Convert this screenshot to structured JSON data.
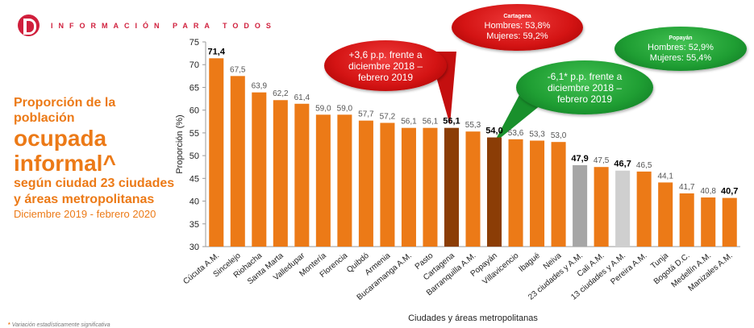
{
  "header": {
    "tagline": "INFORMACIÓN PARA TODOS"
  },
  "side_title": {
    "line1": "Proporción de la población",
    "line2": "ocupada informal^",
    "line3": "según ciudad 23 ciudades y áreas metropolitanas",
    "line4": "Diciembre 2019 - febrero 2020"
  },
  "footnote": {
    "mark": "*",
    "text": "Variación estadísticamente significativa"
  },
  "colors": {
    "orange": "#ec7a17",
    "brown": "#8b3d06",
    "gray_dark": "#a6a6a6",
    "gray_light": "#cfcfcf",
    "red": "#d41414",
    "green": "#1f9e33"
  },
  "bubbles": {
    "red_big": "+3,6 p.p. frente a diciembre 2018 – febrero 2019",
    "green_big": "-6,1* p.p. frente a diciembre 2018 – febrero 2019",
    "red_small": {
      "title": "Cartagena",
      "men": "Hombres: 53,8%",
      "women": "Mujeres: 59,2%"
    },
    "green_small": {
      "title": "Popayán",
      "men": "Hombres: 52,9%",
      "women": "Mujeres: 55,4%"
    }
  },
  "chart_data": {
    "type": "bar",
    "title": "",
    "xlabel": "Ciudades y áreas metropolitanas",
    "ylabel": "Proporción (%)",
    "ylim": [
      30,
      75
    ],
    "yticks": [
      30,
      35,
      40,
      45,
      50,
      55,
      60,
      65,
      70,
      75
    ],
    "categories": [
      "Cúcuta A.M.",
      "Sincelejo",
      "Riohacha",
      "Santa Marta",
      "Valledupar",
      "Montería",
      "Florencia",
      "Quibdó",
      "Armenia",
      "Bucaramanga A.M.",
      "Pasto",
      "Cartagena",
      "Barranquilla A.M.",
      "Popayán",
      "Villavicencio",
      "Ibagué",
      "Neiva",
      "23 ciudades y A.M.",
      "Cali A.M.",
      "13 ciudades y A.M.",
      "Pereira A.M.",
      "Tunja",
      "Bogotá D.C.",
      "Medellín A.M.",
      "Manizales A.M."
    ],
    "values": [
      71.4,
      67.5,
      63.9,
      62.2,
      61.4,
      59.0,
      59.0,
      57.7,
      57.2,
      56.1,
      56.1,
      56.1,
      55.3,
      54.0,
      53.6,
      53.3,
      53.0,
      47.9,
      47.5,
      46.7,
      46.5,
      44.1,
      41.7,
      40.8,
      40.7
    ],
    "value_labels": [
      "71,4",
      "67,5",
      "63,9",
      "62,2",
      "61,4",
      "59,0",
      "59,0",
      "57,7",
      "57,2",
      "56,1",
      "56,1",
      "56,1",
      "55,3",
      "54,0",
      "53,6",
      "53,3",
      "53,0",
      "47,9",
      "47,5",
      "46,7",
      "46,5",
      "44,1",
      "41,7",
      "40,8",
      "40,7"
    ],
    "bar_colors": [
      "orange",
      "orange",
      "orange",
      "orange",
      "orange",
      "orange",
      "orange",
      "orange",
      "orange",
      "orange",
      "orange",
      "brown",
      "orange",
      "brown",
      "orange",
      "orange",
      "orange",
      "gray_dark",
      "orange",
      "gray_light",
      "orange",
      "orange",
      "orange",
      "orange",
      "orange"
    ],
    "bold_labels": [
      0,
      11,
      13,
      17,
      19,
      24
    ],
    "grid": false,
    "legend": "none"
  }
}
